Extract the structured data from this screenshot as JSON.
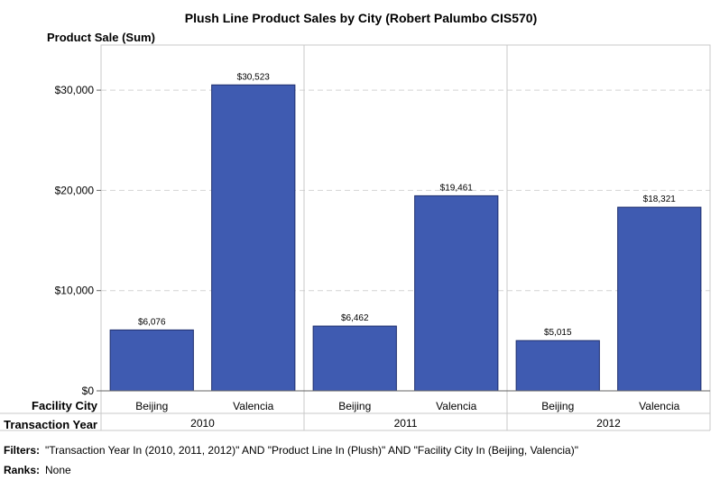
{
  "chart_data": {
    "type": "bar",
    "title": "Plush Line Product Sales by City  (Robert Palumbo CIS570)",
    "ylabel": "Product Sale (Sum)",
    "ylim": [
      0,
      34500
    ],
    "y_ticks": [
      0,
      10000,
      20000,
      30000
    ],
    "y_tick_labels": [
      "$0",
      "$10,000",
      "$20,000",
      "$30,000"
    ],
    "grid": true,
    "bar_color": "#3f5bb1",
    "category_axis_label": "Facility City",
    "group_axis_label": "Transaction Year",
    "groups": [
      {
        "label": "2010",
        "bars": [
          {
            "category": "Beijing",
            "value": 6076,
            "label": "$6,076"
          },
          {
            "category": "Valencia",
            "value": 30523,
            "label": "$30,523"
          }
        ]
      },
      {
        "label": "2011",
        "bars": [
          {
            "category": "Beijing",
            "value": 6462,
            "label": "$6,462"
          },
          {
            "category": "Valencia",
            "value": 19461,
            "label": "$19,461"
          }
        ]
      },
      {
        "label": "2012",
        "bars": [
          {
            "category": "Beijing",
            "value": 5015,
            "label": "$5,015"
          },
          {
            "category": "Valencia",
            "value": 18321,
            "label": "$18,321"
          }
        ]
      }
    ]
  },
  "footer": {
    "filters_label": "Filters:",
    "filters_text": "\"Transaction Year In (2010, 2011, 2012)\" AND \"Product Line In (Plush)\" AND \"Facility City In (Beijing, Valencia)\"",
    "ranks_label": "Ranks:",
    "ranks_text": "None"
  }
}
